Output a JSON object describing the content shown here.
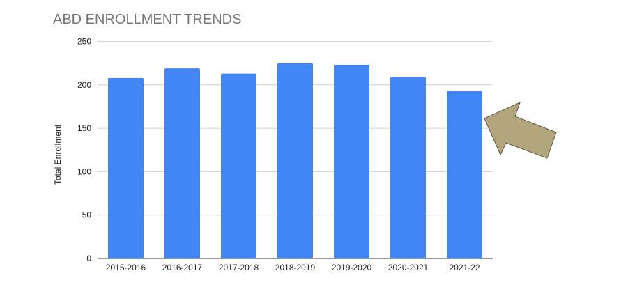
{
  "chart_data": {
    "type": "bar",
    "title": "ABD ENROLLMENT TRENDS",
    "xlabel": "",
    "ylabel": "Total Enrollment",
    "categories": [
      "2015-2016",
      "2016-2017",
      "2017-2018",
      "2018-2019",
      "2019-2020",
      "2020-2021",
      "2021-22"
    ],
    "values": [
      208,
      219,
      213,
      225,
      223,
      209,
      193
    ],
    "ylim": [
      0,
      250
    ],
    "yticks": [
      0,
      50,
      100,
      150,
      200,
      250
    ],
    "grid": true,
    "bar_color": "#4285f4",
    "annotation": {
      "type": "arrow",
      "points_to": "2021-22",
      "color": "#b3a67d"
    }
  }
}
